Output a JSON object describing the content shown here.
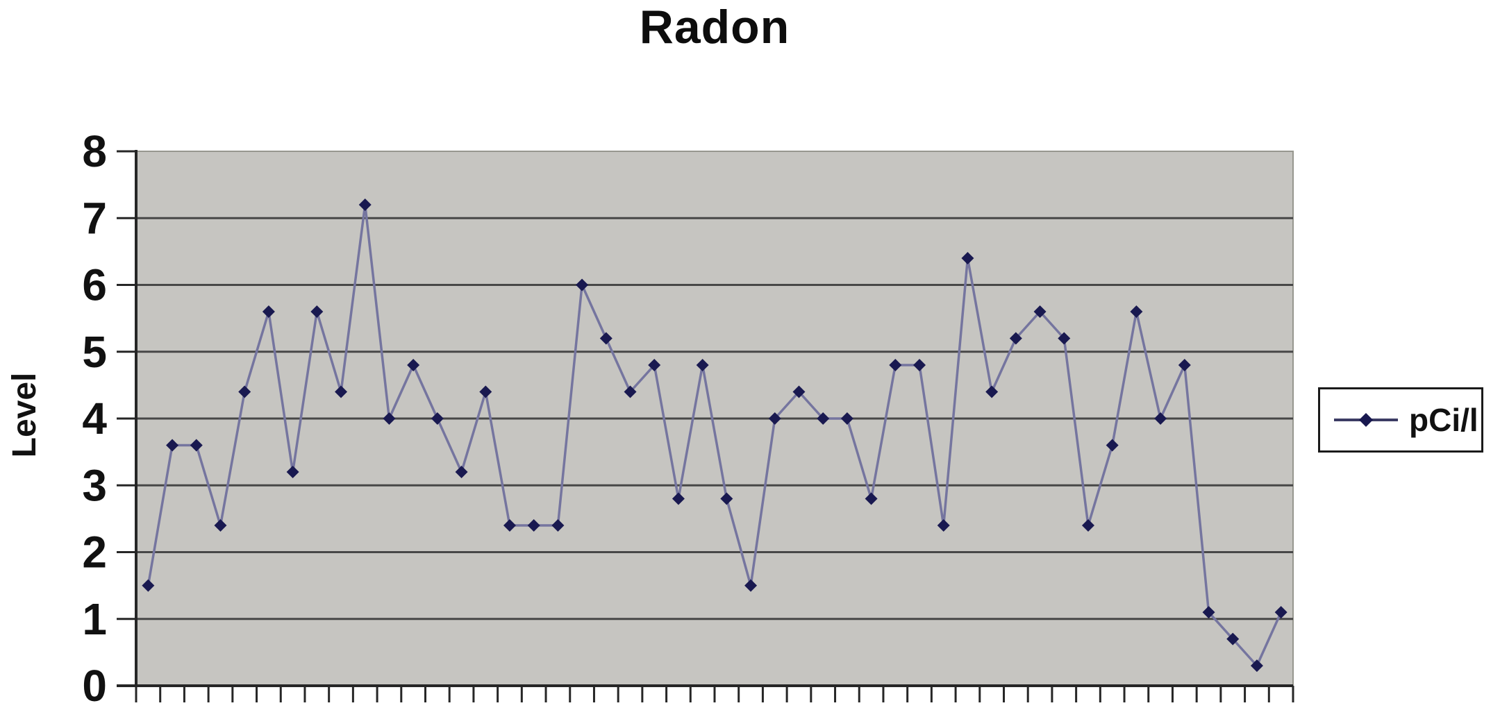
{
  "window": {
    "background": "#ffffff"
  },
  "chart_data": {
    "type": "line",
    "title": "Radon",
    "xlabel": "",
    "ylabel": "Level",
    "ylim": [
      0,
      8
    ],
    "y_ticks": [
      0,
      1,
      2,
      3,
      4,
      5,
      6,
      7,
      8
    ],
    "x_tick_count": 49,
    "x_categories_count": 48,
    "x_tick_labels_visible": false,
    "grid": "horizontal",
    "legend": {
      "position": "right",
      "entries": [
        "pCi/l"
      ]
    },
    "series": [
      {
        "name": "pCi/l",
        "marker": "diamond",
        "values": [
          1.5,
          3.6,
          3.6,
          2.4,
          4.4,
          5.6,
          3.2,
          5.6,
          4.4,
          7.2,
          4,
          4.8,
          4,
          3.2,
          4.4,
          2.4,
          2.4,
          2.4,
          6,
          5.2,
          4.4,
          4.8,
          2.8,
          4.8,
          2.8,
          1.5,
          4,
          4.4,
          4,
          4,
          2.8,
          4.8,
          4.8,
          2.4,
          6.4,
          4.4,
          5.2,
          5.6,
          5.2,
          2.4,
          3.6,
          5.6,
          4,
          4.8,
          1.1,
          0.7,
          0.3,
          1.1
        ]
      }
    ],
    "colors": {
      "plot_background": "#c6c5c1",
      "plot_border": "#97978f",
      "gridline": "#474747",
      "axis": "#262626",
      "series_line": "#75759f",
      "series_marker": "#191950",
      "text": "#111111",
      "legend_background": "#ffffff",
      "legend_border": "#1a1a1a"
    }
  }
}
